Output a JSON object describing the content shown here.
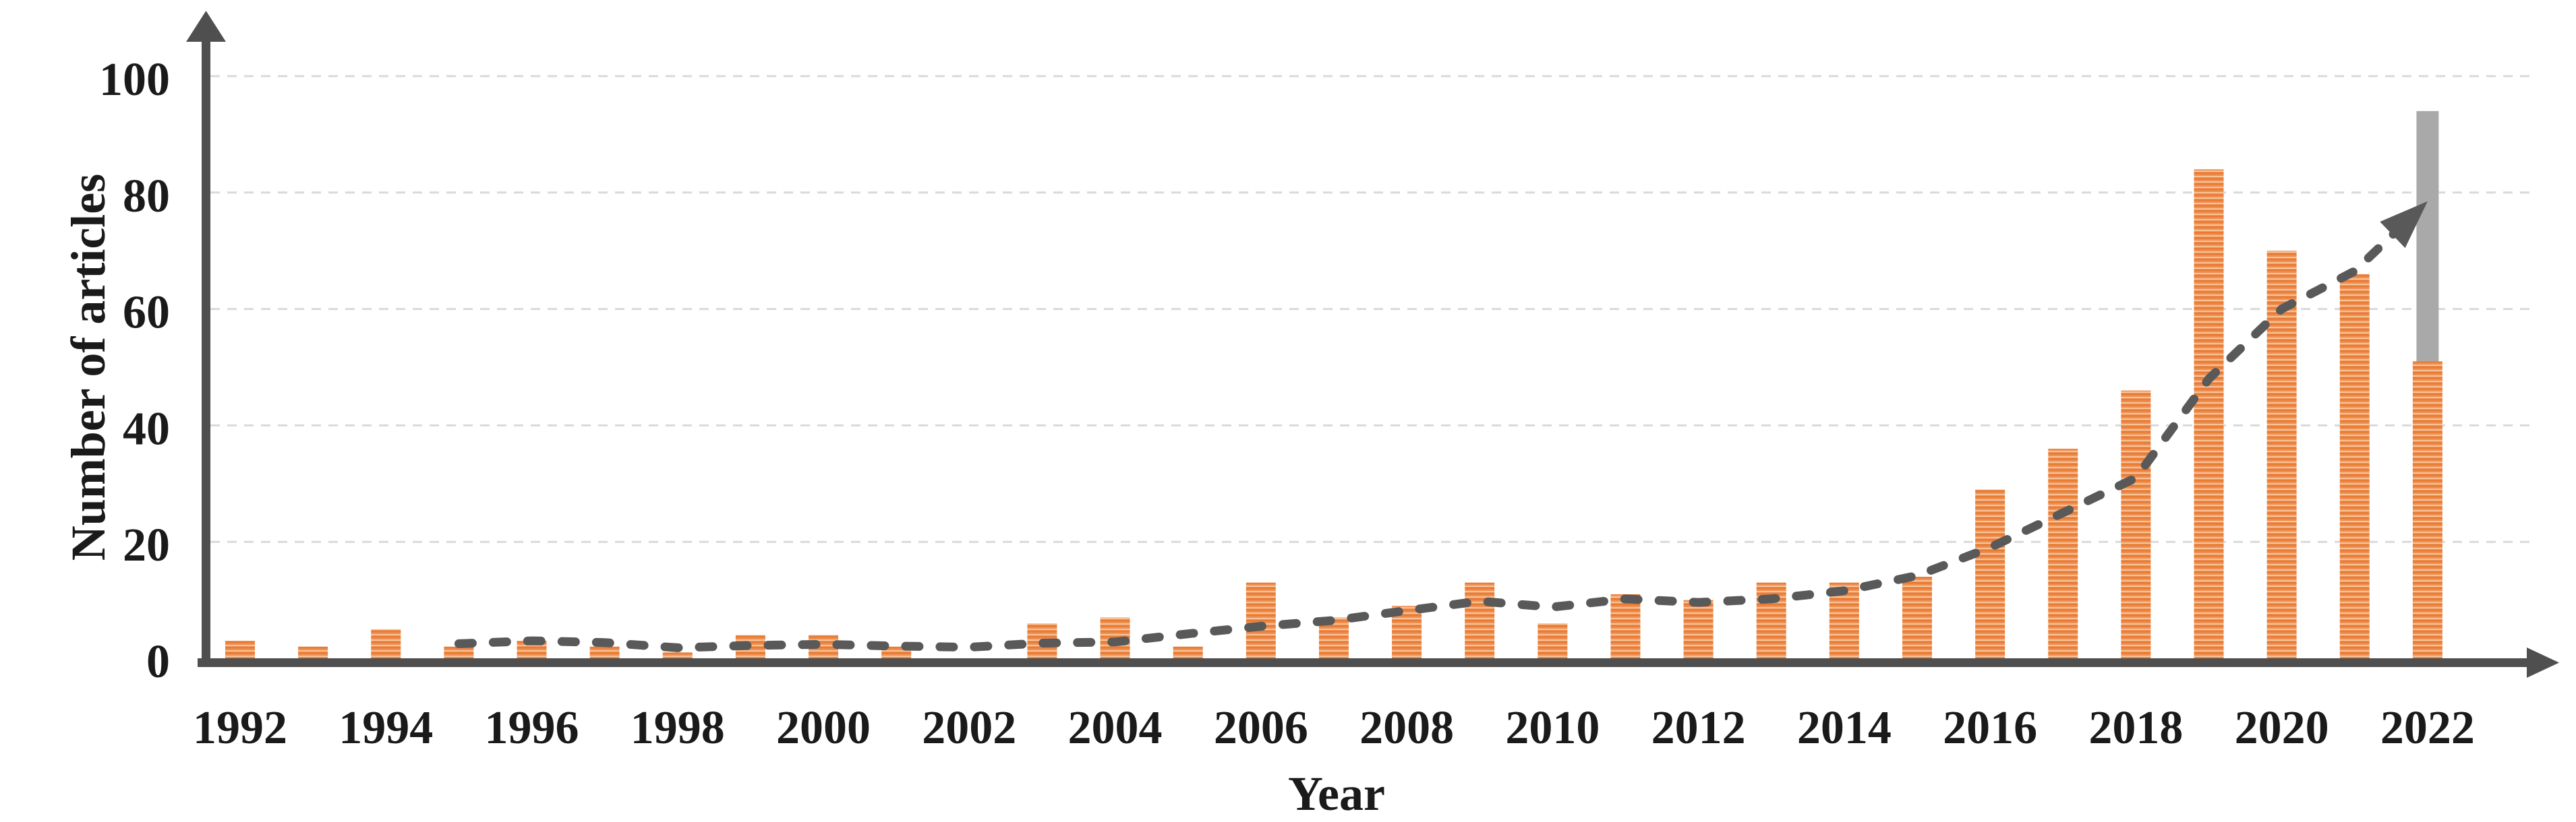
{
  "chart_data": {
    "type": "bar",
    "title": "",
    "xlabel": "Year",
    "ylabel": "Number of articles",
    "categories": [
      1992,
      1993,
      1994,
      1995,
      1996,
      1997,
      1998,
      1999,
      2000,
      2001,
      2002,
      2003,
      2004,
      2005,
      2006,
      2007,
      2008,
      2009,
      2010,
      2011,
      2012,
      2013,
      2014,
      2015,
      2016,
      2017,
      2018,
      2019,
      2020,
      2021,
      2022
    ],
    "values": [
      3,
      2,
      5,
      2,
      3,
      2,
      1,
      4,
      4,
      2,
      0,
      6,
      7,
      2,
      13,
      7,
      9,
      13,
      6,
      11,
      10,
      13,
      13,
      14,
      29,
      36,
      46,
      84,
      70,
      66,
      51
    ],
    "x_tick_labels": [
      "1992",
      "1994",
      "1996",
      "1998",
      "2000",
      "2002",
      "2004",
      "2006",
      "2008",
      "2010",
      "2012",
      "2014",
      "2016",
      "2018",
      "2020",
      "2022"
    ],
    "y_ticks": [
      0,
      20,
      40,
      60,
      80,
      100
    ],
    "ylim": [
      0,
      100
    ],
    "grid": "horizontal-dashed",
    "legend": "none",
    "bar_hatch": "horizontal-stripes",
    "gray_overlay_bar": {
      "year": 2022,
      "from": 51,
      "to": 94
    },
    "trend_line": {
      "style": "dashed",
      "arrow_end": true,
      "points": [
        [
          1995,
          2.5
        ],
        [
          1996,
          3
        ],
        [
          1997,
          2.7
        ],
        [
          1998,
          1.8
        ],
        [
          1999,
          2.2
        ],
        [
          2000,
          2.4
        ],
        [
          2001,
          2.1
        ],
        [
          2002,
          1.9
        ],
        [
          2003,
          2.6
        ],
        [
          2004,
          2.8
        ],
        [
          2005,
          4.2
        ],
        [
          2006,
          5.5
        ],
        [
          2007,
          6.5
        ],
        [
          2008,
          8.2
        ],
        [
          2009,
          9.8
        ],
        [
          2010,
          8.8
        ],
        [
          2011,
          10.2
        ],
        [
          2012,
          9.6
        ],
        [
          2013,
          10.2
        ],
        [
          2014,
          11.6
        ],
        [
          2015,
          14.2
        ],
        [
          2016,
          19
        ],
        [
          2017,
          25
        ],
        [
          2018,
          31
        ],
        [
          2019,
          48
        ],
        [
          2020,
          60
        ],
        [
          2021,
          66.5
        ],
        [
          2022,
          78.5
        ]
      ]
    },
    "colors": {
      "bar_base": "#EE9055",
      "bar_stripe_dark": "#E87C33",
      "bar_stripe_light": "#F8C8A0",
      "gray_bar": "#A9A9A9",
      "axis": "#4F4F4F",
      "trend": "#595959",
      "grid": "#D9D9D9",
      "text": "#1A1A1A"
    }
  }
}
